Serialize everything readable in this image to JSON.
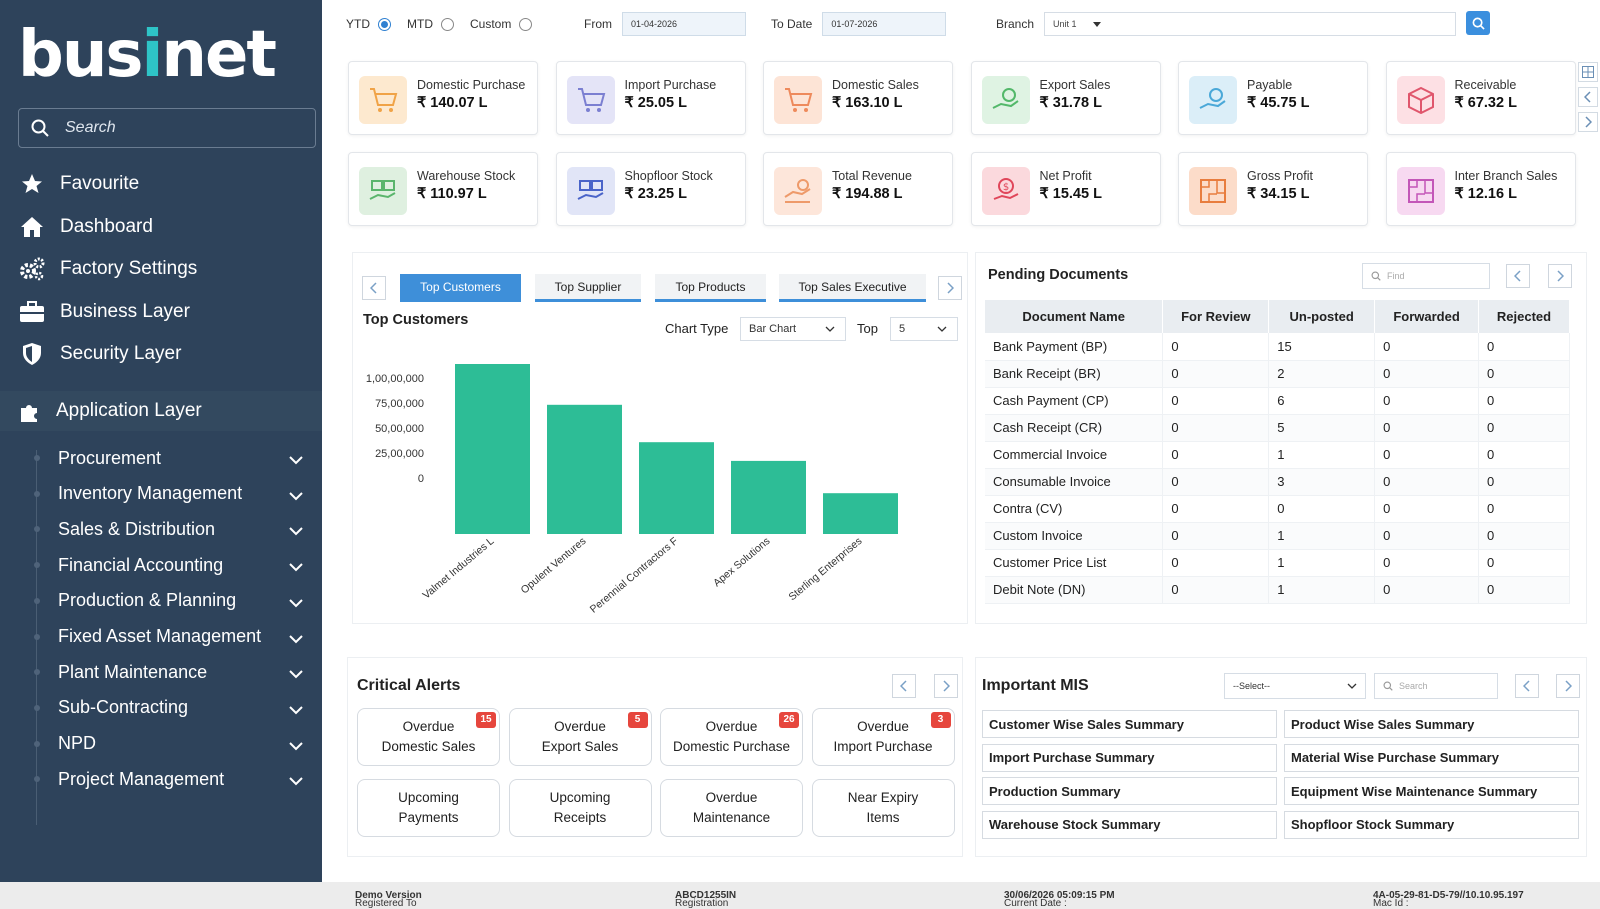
{
  "brand": {
    "logo_text_a": "bus",
    "logo_text_i": "i",
    "logo_text_b": "net"
  },
  "sidebar": {
    "search_placeholder": "Search",
    "items": [
      {
        "label": "Favourite",
        "icon": "star-icon"
      },
      {
        "label": "Dashboard",
        "icon": "home-icon"
      },
      {
        "label": "Factory Settings",
        "icon": "gears-icon"
      },
      {
        "label": "Business Layer",
        "icon": "briefcase-icon"
      },
      {
        "label": "Security Layer",
        "icon": "shield-icon"
      }
    ],
    "application_layer": "Application Layer",
    "sub_items": [
      "Procurement",
      "Inventory Management",
      "Sales & Distribution",
      "Financial Accounting",
      "Production & Planning",
      "Fixed Asset Management",
      "Plant Maintenance",
      "Sub-Contracting",
      "NPD",
      "Project Management"
    ]
  },
  "filters": {
    "ytd": "YTD",
    "mtd": "MTD",
    "custom": "Custom",
    "selected": "YTD",
    "from_label": "From",
    "from_value": "01-04-2026",
    "to_label": "To Date",
    "to_value": "01-07-2026",
    "branch_label": "Branch",
    "branch_value": "Unit 1"
  },
  "kpis": [
    {
      "label": "Domestic Purchase",
      "value": "₹ 140.07 L",
      "color": "#fde9cf",
      "icon": "cart-icon"
    },
    {
      "label": "Import Purchase",
      "value": "₹ 25.05 L",
      "color": "#e4e4f7",
      "icon": "cart-icon"
    },
    {
      "label": "Domestic Sales",
      "value": "₹ 163.10 L",
      "color": "#fde4d6",
      "icon": "cart-icon"
    },
    {
      "label": "Export Sales",
      "value": "₹ 31.78 L",
      "color": "#dff3e3",
      "icon": "hand-coin-icon"
    },
    {
      "label": "Payable",
      "value": "₹ 45.75 L",
      "color": "#dbeef8",
      "icon": "hand-coin-icon"
    },
    {
      "label": "Receivable",
      "value": "₹ 67.32 L",
      "color": "#fde0e4",
      "icon": "box-icon"
    },
    {
      "label": "Warehouse Stock",
      "value": "₹ 110.97 L",
      "color": "#dff0e0",
      "icon": "stock-icon"
    },
    {
      "label": "Shopfloor Stock",
      "value": "₹ 23.25 L",
      "color": "#e1e5f7",
      "icon": "stock-icon"
    },
    {
      "label": "Total Revenue",
      "value": "₹ 194.88 L",
      "color": "#fde6da",
      "icon": "revenue-icon"
    },
    {
      "label": "Net Profit",
      "value": "₹ 15.45 L",
      "color": "#fbd9dd",
      "icon": "profit-icon"
    },
    {
      "label": "Gross Profit",
      "value": "₹ 34.15 L",
      "color": "#fcdcc9",
      "icon": "map-icon"
    },
    {
      "label": "Inter Branch Sales",
      "value": "₹ 12.16 L",
      "color": "#f7d9f1",
      "icon": "map-icon"
    }
  ],
  "chart_panel": {
    "tabs": [
      "Top Customers",
      "Top Supplier",
      "Top Products",
      "Top Sales Executive"
    ],
    "active_tab": 0,
    "title": "Top Customers",
    "chart_type_label": "Chart Type",
    "chart_type_value": "Bar Chart",
    "top_label": "Top",
    "top_value": "5"
  },
  "chart_data": {
    "type": "bar",
    "categories": [
      "Valmet Industries L",
      "Opulent Ventures",
      "Perennial Contractors F",
      "Apex Solutions",
      "Sterling Enterprises"
    ],
    "values": [
      10000000,
      7600000,
      5400000,
      4300000,
      2400000
    ],
    "ylim": [
      0,
      10000000
    ],
    "yticks": [
      "1,00,00,000",
      "75,00,000",
      "50,00,000",
      "25,00,000",
      "0"
    ],
    "bar_color": "#2dbd96",
    "title": "",
    "xlabel": "",
    "ylabel": "",
    "grid": false,
    "legend": "none"
  },
  "pending": {
    "title": "Pending Documents",
    "find_placeholder": "Find",
    "columns": [
      "Document Name",
      "For Review",
      "Un-posted",
      "Forwarded",
      "Rejected"
    ],
    "rows": [
      [
        "Bank Payment (BP)",
        "0",
        "15",
        "0",
        "0"
      ],
      [
        "Bank Receipt (BR)",
        "0",
        "2",
        "0",
        "0"
      ],
      [
        "Cash Payment (CP)",
        "0",
        "6",
        "0",
        "0"
      ],
      [
        "Cash Receipt (CR)",
        "0",
        "5",
        "0",
        "0"
      ],
      [
        "Commercial Invoice",
        "0",
        "1",
        "0",
        "0"
      ],
      [
        "Consumable Invoice",
        "0",
        "3",
        "0",
        "0"
      ],
      [
        "Contra (CV)",
        "0",
        "0",
        "0",
        "0"
      ],
      [
        "Custom Invoice",
        "0",
        "1",
        "0",
        "0"
      ],
      [
        "Customer Price List",
        "0",
        "1",
        "0",
        "0"
      ],
      [
        "Debit Note (DN)",
        "0",
        "1",
        "0",
        "0"
      ]
    ]
  },
  "alerts": {
    "title": "Critical Alerts",
    "items": [
      {
        "line1": "Overdue",
        "line2": "Domestic Sales",
        "badge": "15"
      },
      {
        "line1": "Overdue",
        "line2": "Export Sales",
        "badge": "5"
      },
      {
        "line1": "Overdue",
        "line2": "Domestic Purchase",
        "badge": "26"
      },
      {
        "line1": "Overdue",
        "line2": "Import Purchase",
        "badge": "3"
      },
      {
        "line1": "Upcoming",
        "line2": "Payments",
        "badge": ""
      },
      {
        "line1": "Upcoming",
        "line2": "Receipts",
        "badge": ""
      },
      {
        "line1": "Overdue",
        "line2": "Maintenance",
        "badge": ""
      },
      {
        "line1": "Near Expiry",
        "line2": "Items",
        "badge": ""
      }
    ]
  },
  "mis": {
    "title": "Important MIS",
    "select_value": "--Select--",
    "search_placeholder": "Search",
    "items": [
      "Customer Wise Sales Summary",
      "Product Wise Sales Summary",
      "Import Purchase Summary",
      "Material Wise Purchase Summary",
      "Production Summary",
      "Equipment Wise Maintenance Summary",
      "Warehouse Stock Summary",
      "Shopfloor Stock Summary"
    ]
  },
  "footer": {
    "registered_label": "Registered To : ",
    "registered_value": "Demo Version",
    "reg_no_label": "Registration No. : ",
    "reg_no_value": "ABCD1255IN",
    "date_label": "Current Date : ",
    "date_value": "30/06/2026 05:09:15 PM",
    "mac_label": "Mac Id : ",
    "mac_value": "4A-05-29-81-D5-79//10.10.95.197"
  },
  "colors": {
    "sidebar": "#2e435b",
    "accent": "#3e8fd9",
    "bar": "#2dbd96",
    "badge": "#e6463d"
  }
}
